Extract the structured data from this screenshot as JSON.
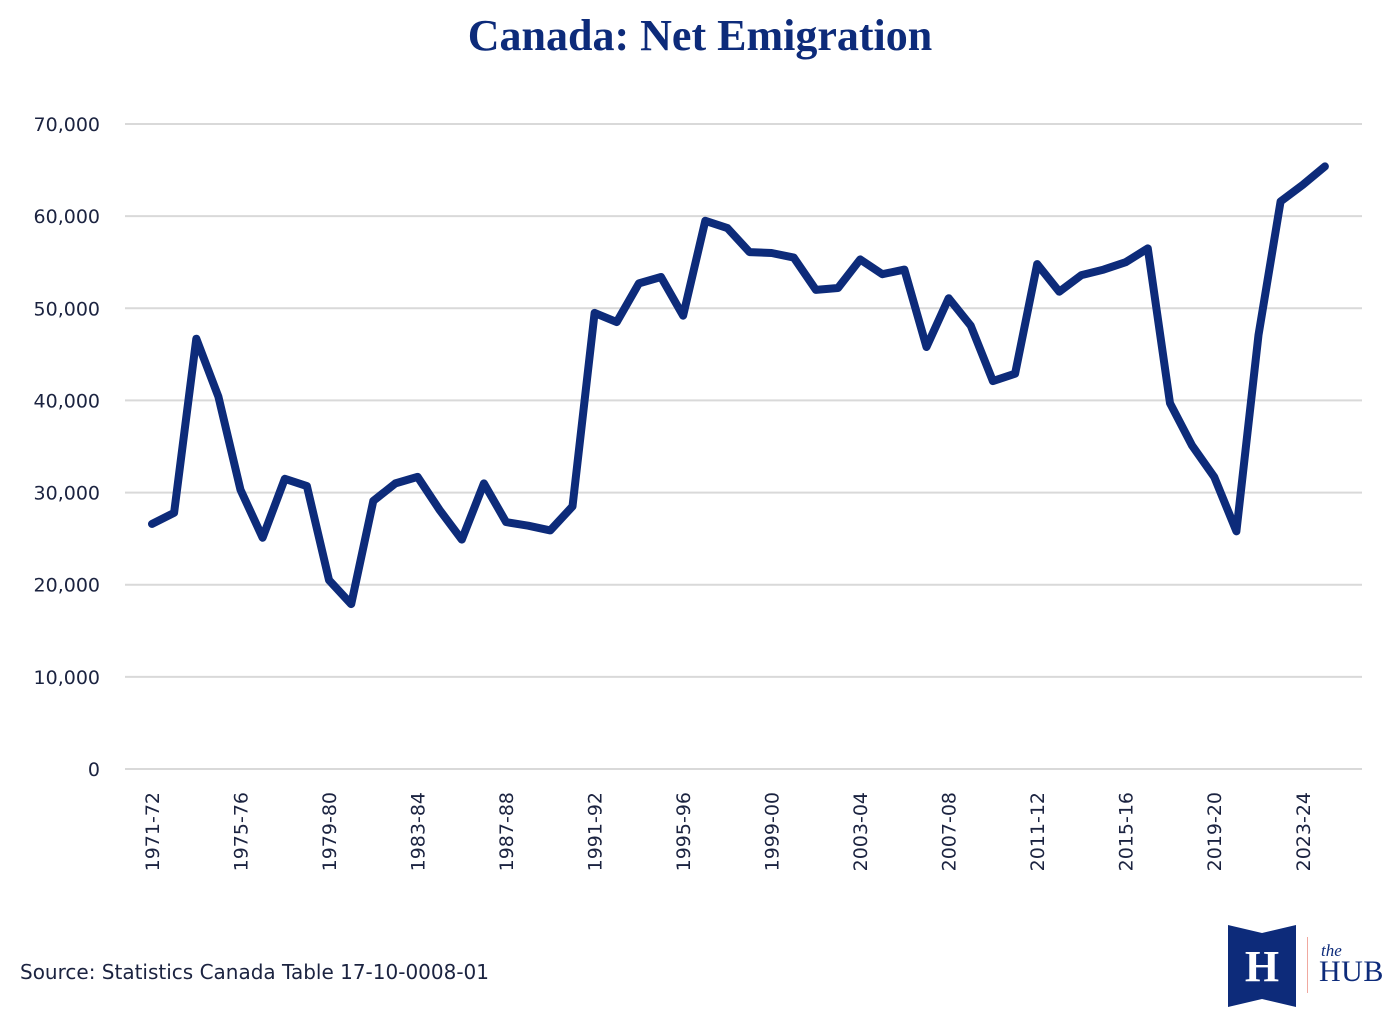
{
  "page": {
    "title": "Canada: Net Emigration",
    "source": "Source: Statistics Canada Table 17-10-0008-01",
    "logo": {
      "mark_letter": "H",
      "small_text": "the",
      "large_text": "HUB"
    },
    "colors": {
      "line": "#0d2b7a",
      "title": "#0d2b7a",
      "grid": "#d9d9d9",
      "text": "#1b2340",
      "logo_divider": "#f0a9a0"
    }
  },
  "chart_data": {
    "type": "line",
    "title": "Canada: Net Emigration",
    "xlabel": "",
    "ylabel": "",
    "ylim": [
      0,
      70000
    ],
    "yticks": [
      0,
      10000,
      20000,
      30000,
      40000,
      50000,
      60000,
      70000
    ],
    "ytick_labels": [
      "0",
      "10,000",
      "20,000",
      "30,000",
      "40,000",
      "50,000",
      "60,000",
      "70,000"
    ],
    "grid": true,
    "legend": "none",
    "x": [
      "1971-72",
      "1972-73",
      "1973-74",
      "1974-75",
      "1975-76",
      "1976-77",
      "1977-78",
      "1978-79",
      "1979-80",
      "1980-81",
      "1981-82",
      "1982-83",
      "1983-84",
      "1984-85",
      "1985-86",
      "1986-87",
      "1987-88",
      "1988-89",
      "1989-90",
      "1990-91",
      "1991-92",
      "1992-93",
      "1993-94",
      "1994-95",
      "1995-96",
      "1996-97",
      "1997-98",
      "1998-99",
      "1999-00",
      "2000-01",
      "2001-02",
      "2002-03",
      "2003-04",
      "2004-05",
      "2005-06",
      "2006-07",
      "2007-08",
      "2008-09",
      "2009-10",
      "2010-11",
      "2011-12",
      "2012-13",
      "2013-14",
      "2014-15",
      "2015-16",
      "2016-17",
      "2017-18",
      "2018-19",
      "2019-20",
      "2020-21",
      "2021-22",
      "2022-23",
      "2023-24",
      "2024-25"
    ],
    "xtick_labels": [
      "1971-72",
      "1975-76",
      "1979-80",
      "1983-84",
      "1987-88",
      "1991-92",
      "1995-96",
      "1999-00",
      "2003-04",
      "2007-08",
      "2011-12",
      "2015-16",
      "2019-20",
      "2023-24"
    ],
    "series": [
      {
        "name": "Net Emigration",
        "values": [
          26600,
          27800,
          46700,
          40400,
          30300,
          25100,
          31500,
          30700,
          20500,
          17900,
          29100,
          31000,
          31700,
          28100,
          24900,
          31000,
          26800,
          26400,
          25900,
          28500,
          49500,
          48500,
          52700,
          53400,
          49200,
          59500,
          58700,
          56100,
          56000,
          55500,
          52000,
          52200,
          55300,
          53700,
          54200,
          45800,
          51100,
          48100,
          42100,
          42900,
          54800,
          51800,
          53600,
          54200,
          55000,
          56500,
          39700,
          35100,
          31700,
          25800,
          47100,
          61600,
          63400,
          65400
        ]
      }
    ]
  }
}
